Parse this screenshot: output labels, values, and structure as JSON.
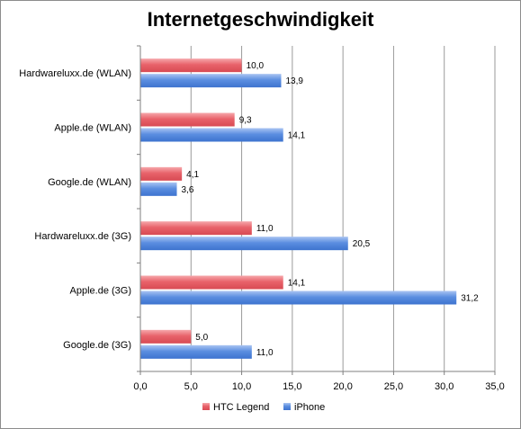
{
  "chart_data": {
    "type": "bar",
    "orientation": "horizontal",
    "title": "Internetgeschwindigkeit",
    "categories": [
      "Hardwareluxx.de (WLAN)",
      "Apple.de (WLAN)",
      "Google.de (WLAN)",
      "Hardwareluxx.de (3G)",
      "Apple.de (3G)",
      "Google.de (3G)"
    ],
    "series": [
      {
        "name": "HTC Legend",
        "color": "#e8626a",
        "values": [
          10.0,
          9.3,
          4.1,
          11.0,
          14.1,
          5.0
        ],
        "labels": [
          "10,0",
          "9,3",
          "4,1",
          "11,0",
          "14,1",
          "5,0"
        ]
      },
      {
        "name": "iPhone",
        "color": "#5b8ee0",
        "values": [
          13.9,
          14.1,
          3.6,
          20.5,
          31.2,
          11.0
        ],
        "labels": [
          "13,9",
          "14,1",
          "3,6",
          "20,5",
          "31,2",
          "11,0"
        ]
      }
    ],
    "xlim": [
      0,
      35
    ],
    "xticks": [
      0,
      5,
      10,
      15,
      20,
      25,
      30,
      35
    ],
    "xtick_labels": [
      "0,0",
      "5,0",
      "10,0",
      "15,0",
      "20,0",
      "25,0",
      "30,0",
      "35,0"
    ],
    "grid": true,
    "legend_position": "bottom"
  }
}
